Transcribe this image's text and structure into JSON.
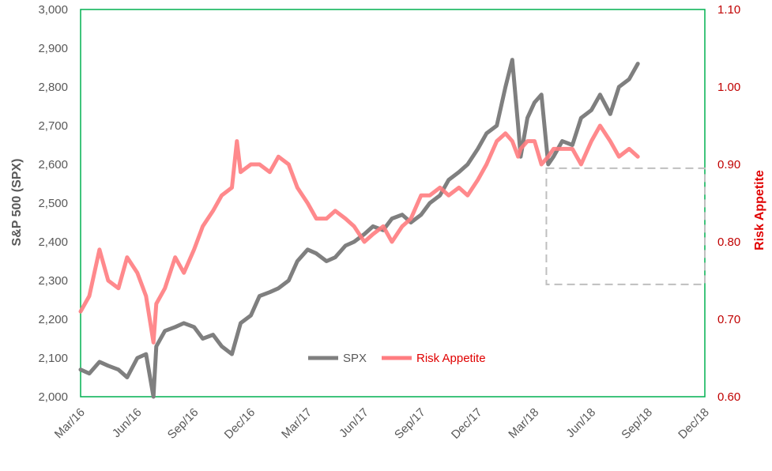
{
  "chart_data": {
    "type": "line",
    "ylabel_left": "S&P 500 (SPX)",
    "ylabel_right": "Risk Appetite",
    "ylim_left": [
      2000,
      3000
    ],
    "ylim_right": [
      0.6,
      1.1
    ],
    "yticks_left": [
      "2,000",
      "2,100",
      "2,200",
      "2,300",
      "2,400",
      "2,500",
      "2,600",
      "2,700",
      "2,800",
      "2,900",
      "3,000"
    ],
    "yticks_right": [
      "0.60",
      "0.70",
      "0.80",
      "0.90",
      "1.00",
      "1.10"
    ],
    "xticks": [
      "Mar/16",
      "Jun/16",
      "Sep/16",
      "Dec/16",
      "Mar/17",
      "Jun/17",
      "Sep/17",
      "Dec/17",
      "Mar/18",
      "Jun/18",
      "Sep/18",
      "Dec/18"
    ],
    "xlim": [
      "2016-03",
      "2018-12"
    ],
    "legend": {
      "position": "bottom-center",
      "entries": [
        "SPX",
        "Risk Appetite"
      ]
    },
    "colors": {
      "frame": "#00b050",
      "spx": "#7f7f7f",
      "risk": "#ff7c80",
      "right_axis": "#c00000"
    },
    "series": [
      {
        "name": "SPX",
        "axis": "left",
        "x": [
          "2016-03-01",
          "2016-03-15",
          "2016-04-01",
          "2016-04-15",
          "2016-05-01",
          "2016-05-15",
          "2016-06-01",
          "2016-06-15",
          "2016-06-27",
          "2016-07-01",
          "2016-07-15",
          "2016-08-01",
          "2016-08-15",
          "2016-09-01",
          "2016-09-15",
          "2016-10-01",
          "2016-10-15",
          "2016-11-01",
          "2016-11-15",
          "2016-12-01",
          "2016-12-15",
          "2017-01-01",
          "2017-01-15",
          "2017-02-01",
          "2017-02-15",
          "2017-03-01",
          "2017-03-15",
          "2017-04-01",
          "2017-04-15",
          "2017-05-01",
          "2017-05-15",
          "2017-06-01",
          "2017-06-15",
          "2017-07-01",
          "2017-07-15",
          "2017-08-01",
          "2017-08-15",
          "2017-09-01",
          "2017-09-15",
          "2017-10-01",
          "2017-10-15",
          "2017-11-01",
          "2017-11-15",
          "2017-12-01",
          "2017-12-15",
          "2018-01-01",
          "2018-01-15",
          "2018-01-26",
          "2018-02-05",
          "2018-02-09",
          "2018-02-20",
          "2018-03-01",
          "2018-03-12",
          "2018-03-23",
          "2018-04-01",
          "2018-04-15",
          "2018-05-01",
          "2018-05-15",
          "2018-06-01",
          "2018-06-15",
          "2018-07-01",
          "2018-07-15",
          "2018-08-01",
          "2018-08-15"
        ],
        "values": [
          2070,
          2060,
          2090,
          2080,
          2070,
          2050,
          2100,
          2110,
          2000,
          2130,
          2170,
          2180,
          2190,
          2180,
          2150,
          2160,
          2130,
          2110,
          2190,
          2210,
          2260,
          2270,
          2280,
          2300,
          2350,
          2380,
          2370,
          2350,
          2360,
          2390,
          2400,
          2420,
          2440,
          2430,
          2460,
          2470,
          2450,
          2470,
          2500,
          2520,
          2560,
          2580,
          2600,
          2640,
          2680,
          2700,
          2800,
          2870,
          2700,
          2620,
          2720,
          2760,
          2780,
          2600,
          2620,
          2660,
          2650,
          2720,
          2740,
          2780,
          2730,
          2800,
          2820,
          2860
        ]
      },
      {
        "name": "Risk Appetite",
        "axis": "right",
        "x": [
          "2016-03-01",
          "2016-03-15",
          "2016-04-01",
          "2016-04-15",
          "2016-05-01",
          "2016-05-15",
          "2016-06-01",
          "2016-06-15",
          "2016-06-27",
          "2016-07-01",
          "2016-07-15",
          "2016-08-01",
          "2016-08-15",
          "2016-09-01",
          "2016-09-15",
          "2016-10-01",
          "2016-10-15",
          "2016-11-01",
          "2016-11-09",
          "2016-11-15",
          "2016-12-01",
          "2016-12-15",
          "2017-01-01",
          "2017-01-15",
          "2017-02-01",
          "2017-02-15",
          "2017-03-01",
          "2017-03-15",
          "2017-04-01",
          "2017-04-15",
          "2017-05-01",
          "2017-05-15",
          "2017-06-01",
          "2017-06-15",
          "2017-07-01",
          "2017-07-15",
          "2017-08-01",
          "2017-08-15",
          "2017-09-01",
          "2017-09-15",
          "2017-10-01",
          "2017-10-15",
          "2017-11-01",
          "2017-11-15",
          "2017-12-01",
          "2017-12-15",
          "2018-01-01",
          "2018-01-15",
          "2018-01-26",
          "2018-02-05",
          "2018-02-09",
          "2018-02-20",
          "2018-03-01",
          "2018-03-12",
          "2018-03-23",
          "2018-04-01",
          "2018-04-15",
          "2018-05-01",
          "2018-05-15",
          "2018-06-01",
          "2018-06-15",
          "2018-07-01",
          "2018-07-15",
          "2018-08-01",
          "2018-08-15"
        ],
        "values": [
          0.71,
          0.73,
          0.79,
          0.75,
          0.74,
          0.78,
          0.76,
          0.73,
          0.67,
          0.72,
          0.74,
          0.78,
          0.76,
          0.79,
          0.82,
          0.84,
          0.86,
          0.87,
          0.93,
          0.89,
          0.9,
          0.9,
          0.89,
          0.91,
          0.9,
          0.87,
          0.85,
          0.83,
          0.83,
          0.84,
          0.83,
          0.82,
          0.8,
          0.81,
          0.82,
          0.8,
          0.82,
          0.83,
          0.86,
          0.86,
          0.87,
          0.86,
          0.87,
          0.86,
          0.88,
          0.9,
          0.93,
          0.94,
          0.93,
          0.91,
          0.92,
          0.93,
          0.93,
          0.9,
          0.91,
          0.92,
          0.92,
          0.92,
          0.9,
          0.93,
          0.95,
          0.93,
          0.91,
          0.92,
          0.91
        ]
      }
    ]
  }
}
